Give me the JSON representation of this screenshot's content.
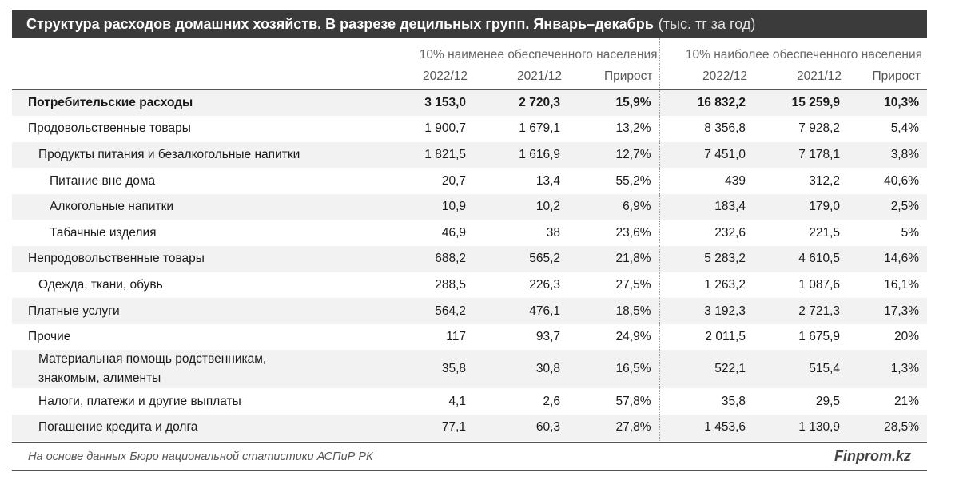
{
  "title": {
    "main": "Структура расходов домашних хозяйств. В разрезе децильных групп. Январь–декабрь",
    "unit": "(тыс. тг за год)"
  },
  "groups": {
    "low": "10% наименее обеспеченного населения",
    "high": "10% наиболее обеспеченного населения"
  },
  "columns": [
    "2022/12",
    "2021/12",
    "Прирост",
    "2022/12",
    "2021/12",
    "Прирост"
  ],
  "rows": [
    {
      "label": "Потребительские расходы",
      "values": [
        "3 153,0",
        "2 720,3",
        "15,9%",
        "16 832,2",
        "15 259,9",
        "10,3%"
      ]
    },
    {
      "label": "Продовольственные товары",
      "values": [
        "1 900,7",
        "1 679,1",
        "13,2%",
        "8 356,8",
        "7 928,2",
        "5,4%"
      ]
    },
    {
      "label": "Продукты питания и безалкогольные напитки",
      "values": [
        "1 821,5",
        "1 616,9",
        "12,7%",
        "7 451,0",
        "7 178,1",
        "3,8%"
      ]
    },
    {
      "label": "Питание вне дома",
      "values": [
        "20,7",
        "13,4",
        "55,2%",
        "439",
        "312,2",
        "40,6%"
      ]
    },
    {
      "label": "Алкогольные напитки",
      "values": [
        "10,9",
        "10,2",
        "6,9%",
        "183,4",
        "179,0",
        "2,5%"
      ]
    },
    {
      "label": "Табачные изделия",
      "values": [
        "46,9",
        "38",
        "23,6%",
        "232,6",
        "221,5",
        "5%"
      ]
    },
    {
      "label": "Непродовольственные товары",
      "values": [
        "688,2",
        "565,2",
        "21,8%",
        "5 283,2",
        "4 610,5",
        "14,6%"
      ]
    },
    {
      "label": "Одежда, ткани, обувь",
      "values": [
        "288,5",
        "226,3",
        "27,5%",
        "1 263,2",
        "1 087,6",
        "16,1%"
      ]
    },
    {
      "label": "Платные услуги",
      "values": [
        "564,2",
        "476,1",
        "18,5%",
        "3 192,3",
        "2 721,3",
        "17,3%"
      ]
    },
    {
      "label": "Прочие",
      "values": [
        "117",
        "93,7",
        "24,9%",
        "2 011,5",
        "1 675,9",
        "20%"
      ]
    },
    {
      "label_line1": "Материальная помощь родственникам,",
      "label_line2": "знакомым, алименты",
      "values": [
        "35,8",
        "30,8",
        "16,5%",
        "522,1",
        "515,4",
        "1,3%"
      ]
    },
    {
      "label": "Налоги, платежи и другие выплаты",
      "values": [
        "4,1",
        "2,6",
        "57,8%",
        "35,8",
        "29,5",
        "21%"
      ]
    },
    {
      "label": "Погашение кредита и долга",
      "values": [
        "77,1",
        "60,3",
        "27,8%",
        "1 453,6",
        "1 130,9",
        "28,5%"
      ]
    }
  ],
  "footer": {
    "source": "На основе данных Бюро национальной статистики АСПиР РК",
    "brand": "Finprom.kz"
  }
}
